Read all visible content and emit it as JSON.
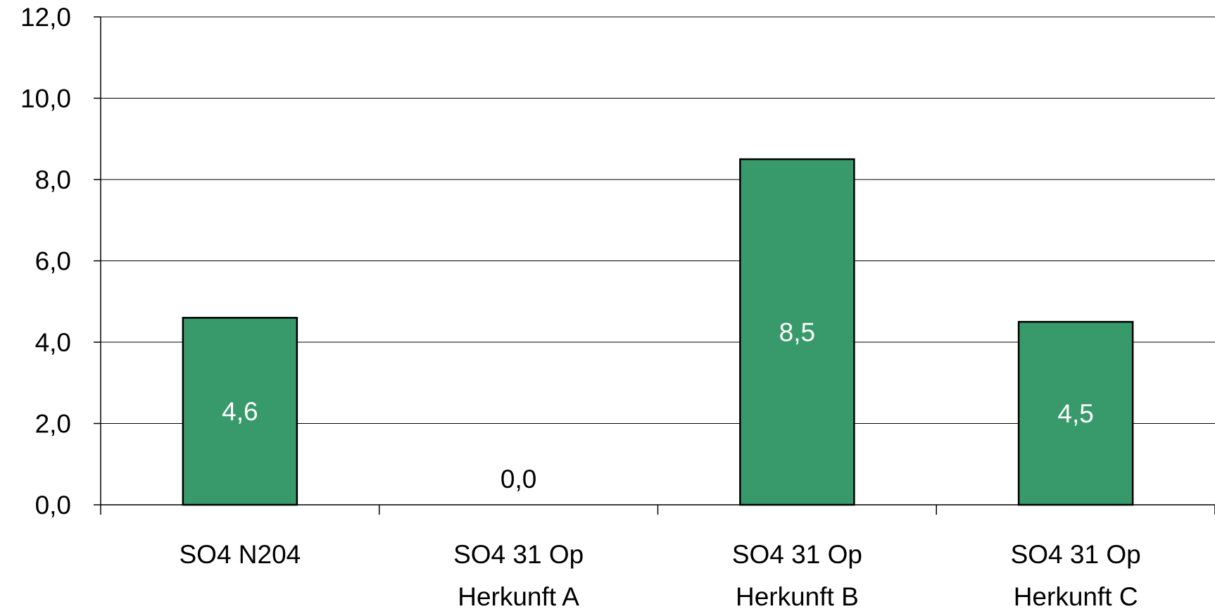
{
  "chart_data": {
    "type": "bar",
    "categories": [
      [
        "SO4 N204"
      ],
      [
        "SO4 31 Op",
        "Herkunft A"
      ],
      [
        "SO4 31 Op",
        "Herkunft B"
      ],
      [
        "SO4 31 Op",
        "Herkunft C"
      ]
    ],
    "values": [
      4.6,
      0.0,
      8.5,
      4.5
    ],
    "value_labels": [
      "4,6",
      "0,0",
      "8,5",
      "4,5"
    ],
    "ylim": [
      0,
      12
    ],
    "y_ticks": [
      0,
      2,
      4,
      6,
      8,
      10,
      12
    ],
    "y_tick_labels": [
      "0,0",
      "2,0",
      "4,0",
      "6,0",
      "8,0",
      "10,0",
      "12,0"
    ],
    "grid": true,
    "colors": {
      "bar": "#389a6a",
      "label_inside": "#ffffff",
      "label_outside": "#000000"
    }
  }
}
